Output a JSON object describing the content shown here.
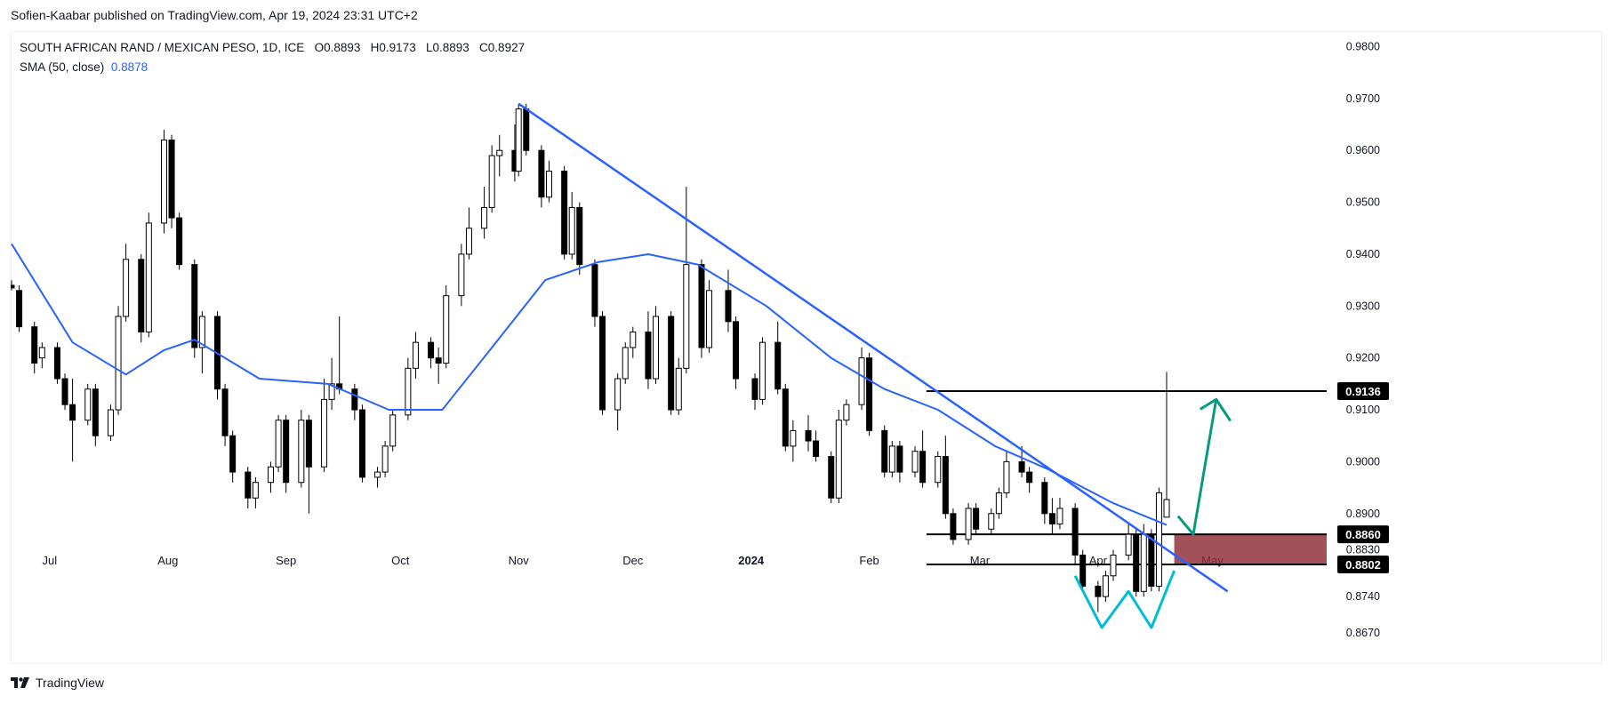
{
  "header": {
    "publisher": "Sofien-Kaabar published on TradingView.com, Apr 19, 2024 23:31 UTC+2"
  },
  "legend": {
    "symbol": "SOUTH AFRICAN RAND / MEXICAN PESO, 1D, ICE",
    "open_label": "O",
    "open": "0.8893",
    "high_label": "H",
    "high": "0.9173",
    "low_label": "L",
    "low": "0.8893",
    "close_label": "C",
    "close": "0.8927",
    "sma_label": "SMA (50, close)",
    "sma_value": "0.8878"
  },
  "footer": {
    "brand": "TradingView",
    "logo_icon": "tradingview-logo-icon"
  },
  "colors": {
    "up_body": "#ffffff",
    "down_body": "#000000",
    "candle_border": "#000000",
    "sma": "#2962ff",
    "trendline": "#2962ff",
    "arrow": "#089981",
    "pattern": "#00bcd4",
    "zone_fill": "#8e2b33",
    "grid": "#e0e3eb"
  },
  "chart_data": {
    "type": "candlestick",
    "title": "SOUTH AFRICAN RAND / MEXICAN PESO, 1D, ICE",
    "x_axis_labels": [
      "Jul",
      "Aug",
      "Sep",
      "Oct",
      "Nov",
      "Dec",
      "2024",
      "Feb",
      "Mar",
      "Apr",
      "May"
    ],
    "y_axis_ticks": [
      "0.9800",
      "0.9700",
      "0.9600",
      "0.9500",
      "0.9400",
      "0.9300",
      "0.9200",
      "0.9100",
      "0.9000",
      "0.8900",
      "0.8830",
      "0.8740",
      "0.8670"
    ],
    "ylim": [
      0.861,
      0.983
    ],
    "price_levels": [
      {
        "label": "0.9136",
        "value": 0.9136
      },
      {
        "label": "0.8860",
        "value": 0.886
      },
      {
        "label": "0.8802",
        "value": 0.8802
      }
    ],
    "support_zone": {
      "low": 0.8802,
      "high": 0.886
    },
    "last_bar": {
      "date": "2024-04-19",
      "open": 0.8893,
      "high": 0.9173,
      "low": 0.8893,
      "close": 0.8927
    },
    "sma_period": 50,
    "sma": [
      {
        "date": "2023-06-21",
        "value": 0.942
      },
      {
        "date": "2023-07-07",
        "value": 0.923
      },
      {
        "date": "2023-07-21",
        "value": 0.9168
      },
      {
        "date": "2023-07-31",
        "value": 0.9215
      },
      {
        "date": "2023-08-08",
        "value": 0.9235
      },
      {
        "date": "2023-08-25",
        "value": 0.916
      },
      {
        "date": "2023-09-12",
        "value": 0.915
      },
      {
        "date": "2023-09-28",
        "value": 0.91
      },
      {
        "date": "2023-10-12",
        "value": 0.91
      },
      {
        "date": "2023-10-25",
        "value": 0.922
      },
      {
        "date": "2023-11-08",
        "value": 0.935
      },
      {
        "date": "2023-11-22",
        "value": 0.9385
      },
      {
        "date": "2023-12-05",
        "value": 0.94
      },
      {
        "date": "2023-12-18",
        "value": 0.938
      },
      {
        "date": "2024-01-05",
        "value": 0.93
      },
      {
        "date": "2024-01-22",
        "value": 0.92
      },
      {
        "date": "2024-02-05",
        "value": 0.914
      },
      {
        "date": "2024-02-19",
        "value": 0.91
      },
      {
        "date": "2024-03-05",
        "value": 0.903
      },
      {
        "date": "2024-03-19",
        "value": 0.8985
      },
      {
        "date": "2024-04-05",
        "value": 0.892
      },
      {
        "date": "2024-04-19",
        "value": 0.8878
      }
    ],
    "ohlc": [
      {
        "date": "2023-06-21",
        "open": 0.934,
        "high": 0.935,
        "low": 0.933,
        "close": 0.9335
      },
      {
        "date": "2023-06-23",
        "open": 0.933,
        "high": 0.934,
        "low": 0.925,
        "close": 0.926
      },
      {
        "date": "2023-06-27",
        "open": 0.926,
        "high": 0.927,
        "low": 0.917,
        "close": 0.919
      },
      {
        "date": "2023-06-29",
        "open": 0.92,
        "high": 0.923,
        "low": 0.918,
        "close": 0.922
      },
      {
        "date": "2023-07-03",
        "open": 0.922,
        "high": 0.923,
        "low": 0.915,
        "close": 0.916
      },
      {
        "date": "2023-07-05",
        "open": 0.916,
        "high": 0.917,
        "low": 0.91,
        "close": 0.911
      },
      {
        "date": "2023-07-07",
        "open": 0.911,
        "high": 0.916,
        "low": 0.9,
        "close": 0.908
      },
      {
        "date": "2023-07-11",
        "open": 0.908,
        "high": 0.915,
        "low": 0.907,
        "close": 0.914
      },
      {
        "date": "2023-07-13",
        "open": 0.914,
        "high": 0.915,
        "low": 0.903,
        "close": 0.905
      },
      {
        "date": "2023-07-17",
        "open": 0.905,
        "high": 0.911,
        "low": 0.904,
        "close": 0.91
      },
      {
        "date": "2023-07-19",
        "open": 0.91,
        "high": 0.93,
        "low": 0.909,
        "close": 0.928
      },
      {
        "date": "2023-07-21",
        "open": 0.928,
        "high": 0.942,
        "low": 0.927,
        "close": 0.939
      },
      {
        "date": "2023-07-25",
        "open": 0.939,
        "high": 0.94,
        "low": 0.923,
        "close": 0.925
      },
      {
        "date": "2023-07-27",
        "open": 0.925,
        "high": 0.948,
        "low": 0.924,
        "close": 0.946
      },
      {
        "date": "2023-07-31",
        "open": 0.946,
        "high": 0.964,
        "low": 0.944,
        "close": 0.962
      },
      {
        "date": "2023-08-02",
        "open": 0.962,
        "high": 0.963,
        "low": 0.945,
        "close": 0.947
      },
      {
        "date": "2023-08-04",
        "open": 0.947,
        "high": 0.948,
        "low": 0.937,
        "close": 0.938
      },
      {
        "date": "2023-08-08",
        "open": 0.938,
        "high": 0.939,
        "low": 0.92,
        "close": 0.922
      },
      {
        "date": "2023-08-10",
        "open": 0.922,
        "high": 0.929,
        "low": 0.917,
        "close": 0.928
      },
      {
        "date": "2023-08-14",
        "open": 0.928,
        "high": 0.929,
        "low": 0.912,
        "close": 0.914
      },
      {
        "date": "2023-08-16",
        "open": 0.914,
        "high": 0.915,
        "low": 0.903,
        "close": 0.905
      },
      {
        "date": "2023-08-18",
        "open": 0.905,
        "high": 0.906,
        "low": 0.896,
        "close": 0.898
      },
      {
        "date": "2023-08-22",
        "open": 0.898,
        "high": 0.899,
        "low": 0.891,
        "close": 0.893
      },
      {
        "date": "2023-08-24",
        "open": 0.893,
        "high": 0.897,
        "low": 0.891,
        "close": 0.896
      },
      {
        "date": "2023-08-28",
        "open": 0.896,
        "high": 0.9,
        "low": 0.894,
        "close": 0.899
      },
      {
        "date": "2023-08-30",
        "open": 0.899,
        "high": 0.909,
        "low": 0.898,
        "close": 0.908
      },
      {
        "date": "2023-09-01",
        "open": 0.908,
        "high": 0.909,
        "low": 0.894,
        "close": 0.896
      },
      {
        "date": "2023-09-05",
        "open": 0.896,
        "high": 0.91,
        "low": 0.895,
        "close": 0.908
      },
      {
        "date": "2023-09-07",
        "open": 0.908,
        "high": 0.909,
        "low": 0.89,
        "close": 0.899
      },
      {
        "date": "2023-09-11",
        "open": 0.899,
        "high": 0.916,
        "low": 0.898,
        "close": 0.912
      },
      {
        "date": "2023-09-13",
        "open": 0.912,
        "high": 0.92,
        "low": 0.91,
        "close": 0.915
      },
      {
        "date": "2023-09-15",
        "open": 0.915,
        "high": 0.928,
        "low": 0.913,
        "close": 0.914
      },
      {
        "date": "2023-09-19",
        "open": 0.914,
        "high": 0.915,
        "low": 0.908,
        "close": 0.91
      },
      {
        "date": "2023-09-21",
        "open": 0.91,
        "high": 0.911,
        "low": 0.896,
        "close": 0.897
      },
      {
        "date": "2023-09-25",
        "open": 0.897,
        "high": 0.899,
        "low": 0.895,
        "close": 0.898
      },
      {
        "date": "2023-09-27",
        "open": 0.898,
        "high": 0.904,
        "low": 0.897,
        "close": 0.903
      },
      {
        "date": "2023-09-29",
        "open": 0.903,
        "high": 0.91,
        "low": 0.902,
        "close": 0.909
      },
      {
        "date": "2023-10-03",
        "open": 0.909,
        "high": 0.92,
        "low": 0.908,
        "close": 0.918
      },
      {
        "date": "2023-10-05",
        "open": 0.918,
        "high": 0.925,
        "low": 0.916,
        "close": 0.923
      },
      {
        "date": "2023-10-09",
        "open": 0.923,
        "high": 0.924,
        "low": 0.918,
        "close": 0.92
      },
      {
        "date": "2023-10-11",
        "open": 0.92,
        "high": 0.922,
        "low": 0.915,
        "close": 0.919
      },
      {
        "date": "2023-10-13",
        "open": 0.919,
        "high": 0.934,
        "low": 0.918,
        "close": 0.932
      },
      {
        "date": "2023-10-17",
        "open": 0.932,
        "high": 0.942,
        "low": 0.93,
        "close": 0.94
      },
      {
        "date": "2023-10-19",
        "open": 0.94,
        "high": 0.949,
        "low": 0.939,
        "close": 0.945
      },
      {
        "date": "2023-10-23",
        "open": 0.945,
        "high": 0.953,
        "low": 0.943,
        "close": 0.949
      },
      {
        "date": "2023-10-25",
        "open": 0.949,
        "high": 0.961,
        "low": 0.948,
        "close": 0.959
      },
      {
        "date": "2023-10-27",
        "open": 0.959,
        "high": 0.963,
        "low": 0.955,
        "close": 0.96
      },
      {
        "date": "2023-10-31",
        "open": 0.96,
        "high": 0.965,
        "low": 0.954,
        "close": 0.956
      },
      {
        "date": "2023-11-01",
        "open": 0.956,
        "high": 0.969,
        "low": 0.955,
        "close": 0.968
      },
      {
        "date": "2023-11-03",
        "open": 0.968,
        "high": 0.969,
        "low": 0.959,
        "close": 0.96
      },
      {
        "date": "2023-11-07",
        "open": 0.96,
        "high": 0.961,
        "low": 0.949,
        "close": 0.951
      },
      {
        "date": "2023-11-09",
        "open": 0.951,
        "high": 0.958,
        "low": 0.95,
        "close": 0.956
      },
      {
        "date": "2023-11-13",
        "open": 0.956,
        "high": 0.957,
        "low": 0.939,
        "close": 0.94
      },
      {
        "date": "2023-11-15",
        "open": 0.94,
        "high": 0.952,
        "low": 0.939,
        "close": 0.949
      },
      {
        "date": "2023-11-17",
        "open": 0.949,
        "high": 0.95,
        "low": 0.936,
        "close": 0.938
      },
      {
        "date": "2023-11-21",
        "open": 0.938,
        "high": 0.939,
        "low": 0.926,
        "close": 0.928
      },
      {
        "date": "2023-11-23",
        "open": 0.928,
        "high": 0.929,
        "low": 0.909,
        "close": 0.91
      },
      {
        "date": "2023-11-27",
        "open": 0.91,
        "high": 0.917,
        "low": 0.906,
        "close": 0.916
      },
      {
        "date": "2023-11-29",
        "open": 0.916,
        "high": 0.923,
        "low": 0.915,
        "close": 0.922
      },
      {
        "date": "2023-12-01",
        "open": 0.922,
        "high": 0.926,
        "low": 0.92,
        "close": 0.925
      },
      {
        "date": "2023-12-05",
        "open": 0.925,
        "high": 0.929,
        "low": 0.914,
        "close": 0.916
      },
      {
        "date": "2023-12-07",
        "open": 0.916,
        "high": 0.93,
        "low": 0.915,
        "close": 0.928
      },
      {
        "date": "2023-12-11",
        "open": 0.928,
        "high": 0.929,
        "low": 0.909,
        "close": 0.91
      },
      {
        "date": "2023-12-13",
        "open": 0.91,
        "high": 0.92,
        "low": 0.909,
        "close": 0.918
      },
      {
        "date": "2023-12-15",
        "open": 0.918,
        "high": 0.953,
        "low": 0.917,
        "close": 0.938
      },
      {
        "date": "2023-12-19",
        "open": 0.938,
        "high": 0.939,
        "low": 0.92,
        "close": 0.922
      },
      {
        "date": "2023-12-21",
        "open": 0.922,
        "high": 0.935,
        "low": 0.921,
        "close": 0.933
      },
      {
        "date": "2023-12-26",
        "open": 0.933,
        "high": 0.937,
        "low": 0.925,
        "close": 0.927
      },
      {
        "date": "2023-12-28",
        "open": 0.927,
        "high": 0.928,
        "low": 0.914,
        "close": 0.916
      },
      {
        "date": "2024-01-02",
        "open": 0.916,
        "high": 0.917,
        "low": 0.91,
        "close": 0.912
      },
      {
        "date": "2024-01-04",
        "open": 0.912,
        "high": 0.924,
        "low": 0.911,
        "close": 0.923
      },
      {
        "date": "2024-01-08",
        "open": 0.923,
        "high": 0.927,
        "low": 0.913,
        "close": 0.914
      },
      {
        "date": "2024-01-10",
        "open": 0.914,
        "high": 0.915,
        "low": 0.902,
        "close": 0.903
      },
      {
        "date": "2024-01-12",
        "open": 0.903,
        "high": 0.908,
        "low": 0.9,
        "close": 0.906
      },
      {
        "date": "2024-01-16",
        "open": 0.906,
        "high": 0.909,
        "low": 0.902,
        "close": 0.904
      },
      {
        "date": "2024-01-18",
        "open": 0.904,
        "high": 0.906,
        "low": 0.9,
        "close": 0.901
      },
      {
        "date": "2024-01-22",
        "open": 0.901,
        "high": 0.902,
        "low": 0.892,
        "close": 0.893
      },
      {
        "date": "2024-01-24",
        "open": 0.893,
        "high": 0.91,
        "low": 0.892,
        "close": 0.908
      },
      {
        "date": "2024-01-26",
        "open": 0.908,
        "high": 0.912,
        "low": 0.907,
        "close": 0.911
      },
      {
        "date": "2024-01-30",
        "open": 0.911,
        "high": 0.922,
        "low": 0.91,
        "close": 0.92
      },
      {
        "date": "2024-02-01",
        "open": 0.92,
        "high": 0.921,
        "low": 0.905,
        "close": 0.906
      },
      {
        "date": "2024-02-05",
        "open": 0.906,
        "high": 0.907,
        "low": 0.897,
        "close": 0.898
      },
      {
        "date": "2024-02-07",
        "open": 0.898,
        "high": 0.904,
        "low": 0.897,
        "close": 0.903
      },
      {
        "date": "2024-02-09",
        "open": 0.903,
        "high": 0.904,
        "low": 0.896,
        "close": 0.898
      },
      {
        "date": "2024-02-13",
        "open": 0.898,
        "high": 0.903,
        "low": 0.897,
        "close": 0.902
      },
      {
        "date": "2024-02-15",
        "open": 0.902,
        "high": 0.906,
        "low": 0.895,
        "close": 0.896
      },
      {
        "date": "2024-02-19",
        "open": 0.896,
        "high": 0.902,
        "low": 0.895,
        "close": 0.901
      },
      {
        "date": "2024-02-21",
        "open": 0.901,
        "high": 0.905,
        "low": 0.889,
        "close": 0.89
      },
      {
        "date": "2024-02-23",
        "open": 0.89,
        "high": 0.891,
        "low": 0.884,
        "close": 0.885
      },
      {
        "date": "2024-02-27",
        "open": 0.885,
        "high": 0.892,
        "low": 0.884,
        "close": 0.891
      },
      {
        "date": "2024-02-29",
        "open": 0.891,
        "high": 0.892,
        "low": 0.886,
        "close": 0.887
      },
      {
        "date": "2024-03-04",
        "open": 0.887,
        "high": 0.891,
        "low": 0.886,
        "close": 0.89
      },
      {
        "date": "2024-03-06",
        "open": 0.89,
        "high": 0.895,
        "low": 0.889,
        "close": 0.894
      },
      {
        "date": "2024-03-08",
        "open": 0.894,
        "high": 0.902,
        "low": 0.893,
        "close": 0.9
      },
      {
        "date": "2024-03-12",
        "open": 0.9,
        "high": 0.903,
        "low": 0.897,
        "close": 0.898
      },
      {
        "date": "2024-03-14",
        "open": 0.898,
        "high": 0.899,
        "low": 0.894,
        "close": 0.896
      },
      {
        "date": "2024-03-18",
        "open": 0.896,
        "high": 0.897,
        "low": 0.888,
        "close": 0.89
      },
      {
        "date": "2024-03-20",
        "open": 0.89,
        "high": 0.893,
        "low": 0.886,
        "close": 0.888
      },
      {
        "date": "2024-03-22",
        "open": 0.888,
        "high": 0.893,
        "low": 0.887,
        "close": 0.891
      },
      {
        "date": "2024-03-26",
        "open": 0.891,
        "high": 0.892,
        "low": 0.88,
        "close": 0.882
      },
      {
        "date": "2024-03-28",
        "open": 0.882,
        "high": 0.883,
        "low": 0.875,
        "close": 0.876
      },
      {
        "date": "2024-04-01",
        "open": 0.876,
        "high": 0.877,
        "low": 0.871,
        "close": 0.874
      },
      {
        "date": "2024-04-03",
        "open": 0.874,
        "high": 0.879,
        "low": 0.873,
        "close": 0.878
      },
      {
        "date": "2024-04-05",
        "open": 0.878,
        "high": 0.883,
        "low": 0.877,
        "close": 0.882
      },
      {
        "date": "2024-04-09",
        "open": 0.882,
        "high": 0.888,
        "low": 0.881,
        "close": 0.886
      },
      {
        "date": "2024-04-11",
        "open": 0.886,
        "high": 0.887,
        "low": 0.874,
        "close": 0.875
      },
      {
        "date": "2024-04-13",
        "open": 0.875,
        "high": 0.888,
        "low": 0.874,
        "close": 0.886
      },
      {
        "date": "2024-04-15",
        "open": 0.886,
        "high": 0.887,
        "low": 0.875,
        "close": 0.876
      },
      {
        "date": "2024-04-17",
        "open": 0.876,
        "high": 0.895,
        "low": 0.875,
        "close": 0.894
      },
      {
        "date": "2024-04-19",
        "open": 0.8893,
        "high": 0.9173,
        "low": 0.8893,
        "close": 0.8927
      }
    ],
    "trendline": {
      "from": {
        "date": "2023-11-01",
        "value": 0.969
      },
      "to": {
        "date": "2024-05-05",
        "value": 0.875
      }
    },
    "projection_arrow": {
      "from": {
        "date": "2024-04-22",
        "value": 0.8895
      },
      "via": {
        "date": "2024-04-26",
        "value": 0.886
      },
      "to": {
        "date": "2024-05-02",
        "value": 0.912
      }
    },
    "double_bottom": [
      {
        "date": "2024-03-26",
        "value": 0.878
      },
      {
        "date": "2024-04-02",
        "value": 0.868
      },
      {
        "date": "2024-04-09",
        "value": 0.875
      },
      {
        "date": "2024-04-15",
        "value": 0.868
      },
      {
        "date": "2024-04-21",
        "value": 0.879
      }
    ]
  }
}
